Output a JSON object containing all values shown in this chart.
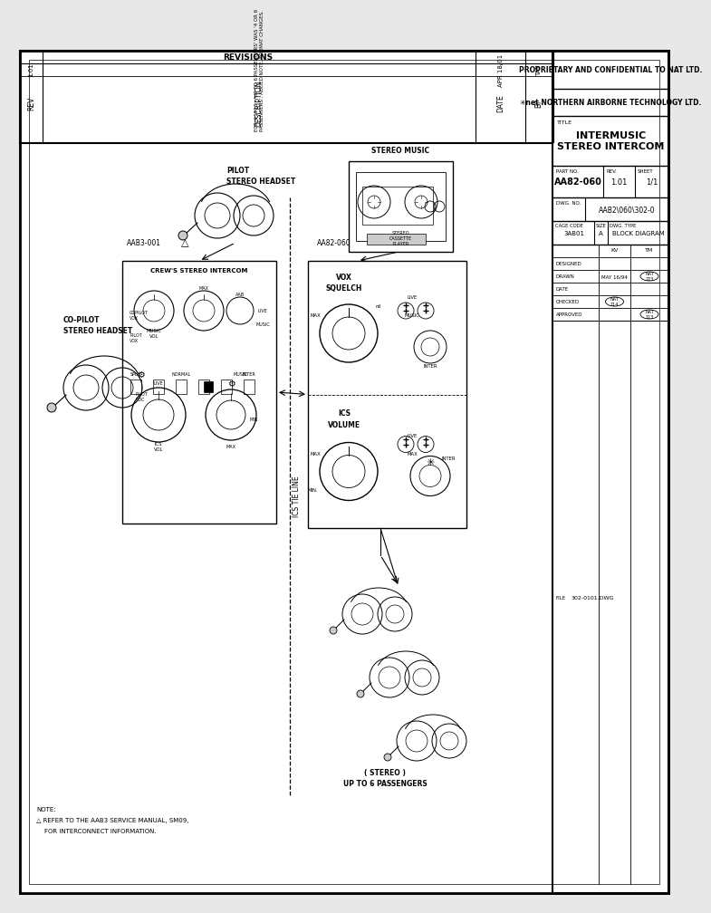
{
  "bg_color": "#e8e8e8",
  "paper_color": "#ffffff",
  "line_color": "#000000",
  "title_line1": "INTERMUSIC",
  "title_line2": "STEREO INTERCOM",
  "part_no": "AA82-060",
  "proprietary": "PROPRIETARY AND CONFIDENTIAL TO NAT LTD.",
  "company_pre": "*net",
  "company_post": " NORTHERN AIRBORNE TECHNOLOGY LTD.",
  "rev": "1.01",
  "sheet": "1/1",
  "dwg_no": "AAB2\\060\\302-0",
  "file_no": "302-0101.DWG",
  "cage_code": "3AB01",
  "size": "A",
  "dwg_type": "BLOCK DIAGRAM",
  "revisions_header": "REVISIONS",
  "rev_col": "REV",
  "description_col": "DESCRIPTION",
  "date_col": "DATE",
  "by_col": "BY",
  "rev_val": "1.01",
  "description_line1": "ECR #1913 - 'UP TO 6 PASSENGERS' WAS '4 OR 6",
  "description_line2": "PASSENGERS', ADDED NOTE, FORMAT CHANGES.",
  "date_val": "APR 18/01",
  "by_val": "TAT",
  "aab3_label": "AAB3-001",
  "crews_label": "CREW'S STEREO INTERCOM",
  "aa82_label": "AA82-060",
  "vox_label1": "VOX",
  "vox_label2": "SQUELCH",
  "ics_label1": "ICS",
  "ics_label2": "VOLUME",
  "stereo_music_label": "STEREO MUSIC",
  "stereo_cassette_label": "STEREO\nCASSETTE\nPLAYER",
  "pilot_label1": "PILOT",
  "pilot_label2": "STEREO HEADSET",
  "copilot_label1": "CO-PILOT",
  "copilot_label2": "STEREO HEADSET",
  "passenger_label1": "( STEREO )",
  "passenger_label2": "UP TO 6 PASSENGERS",
  "ics_tie_line": "ICS TIE LINE",
  "note_line1": "NOTE:",
  "note_line2": "△ REFER TO THE AAB3 SERVICE MANUAL, SM09,",
  "note_line3": "    FOR INTERCONNECT INFORMATION.",
  "designed_label": "DESIGNED",
  "drawn_label": "DRAWN",
  "date_label": "DATE",
  "checked_label": "CHECKED",
  "approved_label": "APPROVED",
  "kv_label": "KV",
  "tm_label": "TM",
  "drawn_date": "MAY 16/94",
  "nat_223": "NAT\n223",
  "nat_114": "NAT\n114",
  "nat_113": "NAT\n113",
  "title_label": "TITLE",
  "file_label": "FILE"
}
